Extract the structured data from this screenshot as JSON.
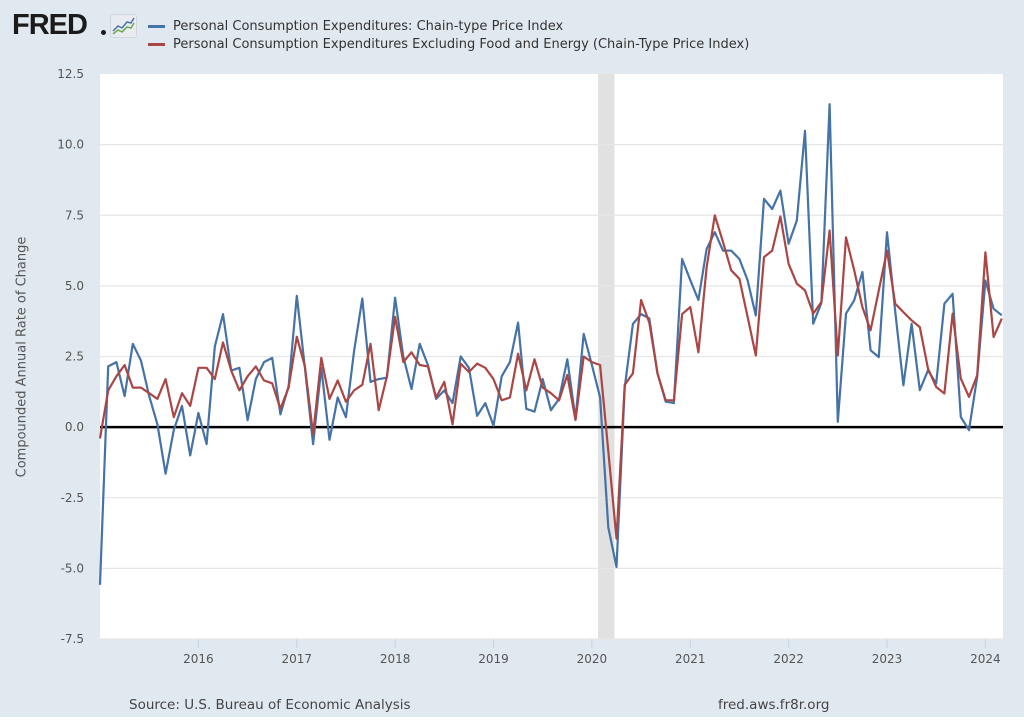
{
  "header": {
    "logo_text": "FRED",
    "logo_icon": "line-chart-icon"
  },
  "footer": {
    "source": "Source: U.S. Bureau of Economic Analysis",
    "site": "fred.aws.fr8r.org"
  },
  "chart_data": {
    "type": "line",
    "title": "",
    "xlabel": "",
    "ylabel": "Compounded Annual Rate of Change",
    "ylim": [
      -7.5,
      12.5
    ],
    "yticks": [
      "12.5",
      "10.0",
      "7.5",
      "5.0",
      "2.5",
      "0.0",
      "-2.5",
      "-5.0",
      "-7.5"
    ],
    "ytick_values": [
      12.5,
      10.0,
      7.5,
      5.0,
      2.5,
      0.0,
      -2.5,
      -5.0,
      -7.5
    ],
    "xticks": [
      "2016",
      "2017",
      "2018",
      "2019",
      "2020",
      "2021",
      "2022",
      "2023",
      "2024"
    ],
    "x_start": "2015-01",
    "x_end": "2024-03",
    "frequency": "monthly",
    "grid": true,
    "legend_position": "top",
    "zero_line": true,
    "recession_shading": [
      {
        "start": "2020-02",
        "end": "2020-04",
        "color": "#e1e1e1"
      }
    ],
    "series": [
      {
        "name": "Personal Consumption Expenditures: Chain-type Price Index",
        "color": "#4572a7",
        "values": [
          -5.58,
          2.15,
          2.3,
          1.1,
          2.95,
          2.35,
          1.1,
          0.1,
          -1.65,
          -0.1,
          0.75,
          -1.0,
          0.5,
          -0.6,
          2.85,
          4.0,
          2.0,
          2.1,
          0.25,
          1.7,
          2.3,
          2.45,
          0.45,
          1.45,
          4.65,
          2.1,
          -0.6,
          2.1,
          -0.45,
          1.05,
          0.35,
          2.7,
          4.55,
          1.6,
          1.7,
          1.75,
          4.58,
          2.5,
          1.35,
          2.95,
          2.2,
          1.0,
          1.3,
          0.85,
          2.5,
          2.1,
          0.4,
          0.85,
          0.05,
          1.8,
          2.3,
          3.7,
          0.65,
          0.55,
          1.7,
          0.6,
          1.0,
          2.4,
          0.3,
          3.3,
          2.2,
          1.05,
          -3.55,
          -4.95,
          1.4,
          3.65,
          4.0,
          3.85,
          1.9,
          0.9,
          0.85,
          5.95,
          5.2,
          4.5,
          6.3,
          6.9,
          6.25,
          6.25,
          5.95,
          5.2,
          3.95,
          8.08,
          7.72,
          8.37,
          6.49,
          7.31,
          10.49,
          3.66,
          4.4,
          11.43,
          0.19,
          4.02,
          4.49,
          5.49,
          2.72,
          2.48,
          6.9,
          4.1,
          1.48,
          3.66,
          1.31,
          2.01,
          1.54,
          4.37,
          4.72,
          0.36,
          -0.11,
          1.78,
          5.19,
          4.19,
          3.96
        ]
      },
      {
        "name": "Personal Consumption Expenditures Excluding Food and Energy (Chain-Type Price Index)",
        "color": "#aa4643",
        "values": [
          -0.4,
          1.3,
          1.8,
          2.2,
          1.4,
          1.4,
          1.2,
          1.0,
          1.7,
          0.35,
          1.2,
          0.75,
          2.1,
          2.1,
          1.7,
          3.0,
          2.0,
          1.3,
          1.8,
          2.15,
          1.65,
          1.55,
          0.65,
          1.4,
          3.2,
          2.15,
          -0.25,
          2.45,
          1.0,
          1.65,
          0.9,
          1.3,
          1.5,
          2.95,
          0.6,
          1.8,
          3.9,
          2.3,
          2.65,
          2.2,
          2.15,
          1.05,
          1.6,
          0.1,
          2.25,
          1.95,
          2.25,
          2.1,
          1.7,
          0.95,
          1.05,
          2.6,
          1.3,
          2.4,
          1.4,
          1.2,
          0.95,
          1.85,
          0.25,
          2.5,
          2.3,
          2.2,
          -0.85,
          -3.95,
          1.5,
          1.9,
          4.5,
          3.7,
          1.9,
          0.95,
          0.95,
          4.0,
          4.25,
          2.65,
          5.65,
          7.5,
          6.55,
          5.55,
          5.25,
          3.9,
          2.54,
          6.02,
          6.25,
          7.46,
          5.78,
          5.08,
          4.84,
          4.02,
          4.43,
          6.96,
          2.54,
          6.72,
          5.55,
          4.25,
          3.43,
          4.84,
          6.25,
          4.37,
          4.07,
          3.78,
          3.54,
          2.07,
          1.42,
          1.19,
          4.02,
          1.72,
          1.07,
          1.84,
          6.19,
          3.19,
          3.84
        ]
      }
    ]
  }
}
